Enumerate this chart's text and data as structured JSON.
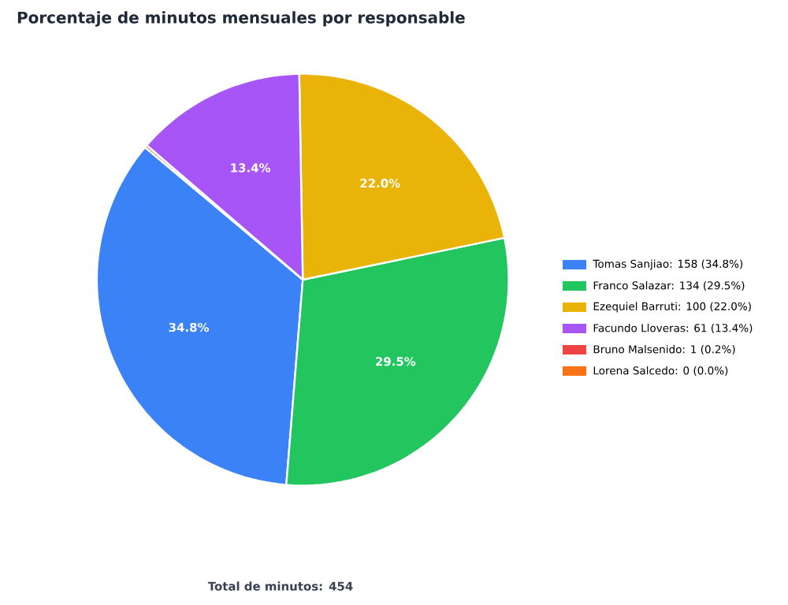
{
  "chart_data": {
    "type": "pie",
    "title": "Porcentaje de minutos mensuales por responsable",
    "categories": [
      "Tomas Sanjiao: 158 (34.8%)",
      "Franco Salazar: 134 (29.5%)",
      "Ezequiel Barruti: 100 (22.0%)",
      "Facundo Lloveras: 61 (13.4%)",
      "Bruno Malsenido: 1 (0.2%)",
      "Lorena Salcedo: 0 (0.0%)"
    ],
    "values": [
      34.8,
      29.5,
      22.0,
      13.4,
      0.2,
      0.0
    ],
    "value_labels": [
      "34.8%",
      "29.5%",
      "22.0%",
      "13.4%",
      null,
      null
    ],
    "colors": [
      "#3b82f6",
      "#22c55e",
      "#eab308",
      "#a855f7",
      "#ef4444",
      "#f97316"
    ],
    "legend": "right",
    "annotations": [
      "Total de minutos: 454"
    ]
  }
}
